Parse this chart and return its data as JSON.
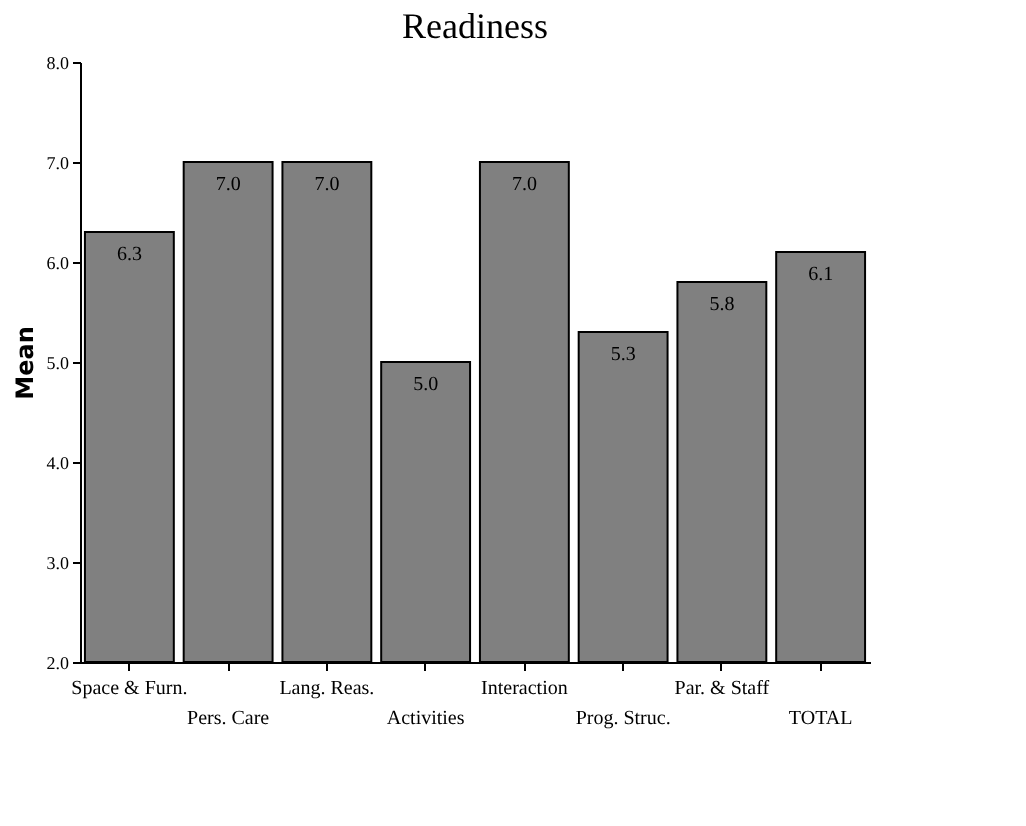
{
  "chart_data": {
    "type": "bar",
    "title": "Readiness",
    "ylabel": "Mean",
    "categories": [
      "Space & Furn.",
      "Pers. Care",
      "Lang. Reas.",
      "Activities",
      "Interaction",
      "Prog. Struc.",
      "Par. & Staff",
      "TOTAL"
    ],
    "values": [
      6.3,
      7.0,
      7.0,
      5.0,
      7.0,
      5.3,
      5.8,
      6.1
    ],
    "value_labels": [
      "6.3",
      "7.0",
      "7.0",
      "5.0",
      "7.0",
      "5.3",
      "5.8",
      "6.1"
    ],
    "color": "#808080",
    "ylim": [
      2,
      8
    ],
    "yticks": [
      {
        "value": 2,
        "label": "2.0"
      },
      {
        "value": 3,
        "label": "3.0"
      },
      {
        "value": 4,
        "label": "4.0"
      },
      {
        "value": 5,
        "label": "5.0"
      },
      {
        "value": 6,
        "label": "6.0"
      },
      {
        "value": 7,
        "label": "7.0"
      },
      {
        "value": 8,
        "label": "8.0"
      }
    ],
    "grid": false
  }
}
